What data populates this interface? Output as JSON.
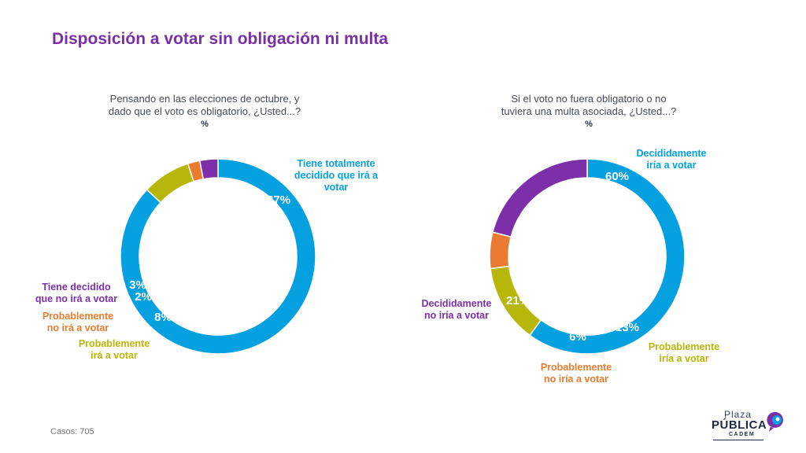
{
  "title": "Disposición a votar sin obligación ni multa",
  "colors": {
    "title": "#7b2fa5",
    "blue": "#05a0e0",
    "purple": "#7c2fa9",
    "orange": "#ea7b30",
    "olive": "#b6b60b"
  },
  "footer": {
    "cases_label": "Casos:",
    "cases_value": "705"
  },
  "logo": {
    "line1": "Plaza",
    "line2": "PÚBLICA",
    "line3": "CADEM"
  },
  "chart_data": [
    {
      "type": "pie",
      "question_line1": "Pensando en las elecciones de octubre, y",
      "question_line2": "dado que el voto es obligatorio, ¿Usted...?",
      "unit": "%",
      "slices": [
        {
          "label_lines": [
            "Tiene totalmente",
            "decidido que irá a",
            "votar"
          ],
          "value": 87,
          "value_label": "87%",
          "color": "#05a0e0"
        },
        {
          "label_lines": [
            "Probablemente",
            "irá a votar"
          ],
          "value": 8,
          "value_label": "8%",
          "color": "#b6b60b"
        },
        {
          "label_lines": [
            "Probablemente",
            "no irá a votar"
          ],
          "value": 2,
          "value_label": "2%",
          "color": "#ea7b30"
        },
        {
          "label_lines": [
            "Tiene decidido",
            "que no irá a votar"
          ],
          "value": 3,
          "value_label": "3%",
          "color": "#7c2fa9"
        }
      ]
    },
    {
      "type": "pie",
      "question_line1": "Si el voto no fuera obligatorio o no",
      "question_line2": "tuviera una multa asociada, ¿Usted...?",
      "unit": "%",
      "slices": [
        {
          "label_lines": [
            "Decididamente",
            "iría a votar"
          ],
          "value": 60,
          "value_label": "60%",
          "color": "#05a0e0"
        },
        {
          "label_lines": [
            "Probablemente",
            "iría a votar"
          ],
          "value": 13,
          "value_label": "13%",
          "color": "#b6b60b"
        },
        {
          "label_lines": [
            "Probablemente",
            "no iría a votar"
          ],
          "value": 6,
          "value_label": "6%",
          "color": "#ea7b30"
        },
        {
          "label_lines": [
            "Decididamente",
            "no iría a votar"
          ],
          "value": 21,
          "value_label": "21%",
          "color": "#7c2fa9"
        }
      ]
    }
  ]
}
